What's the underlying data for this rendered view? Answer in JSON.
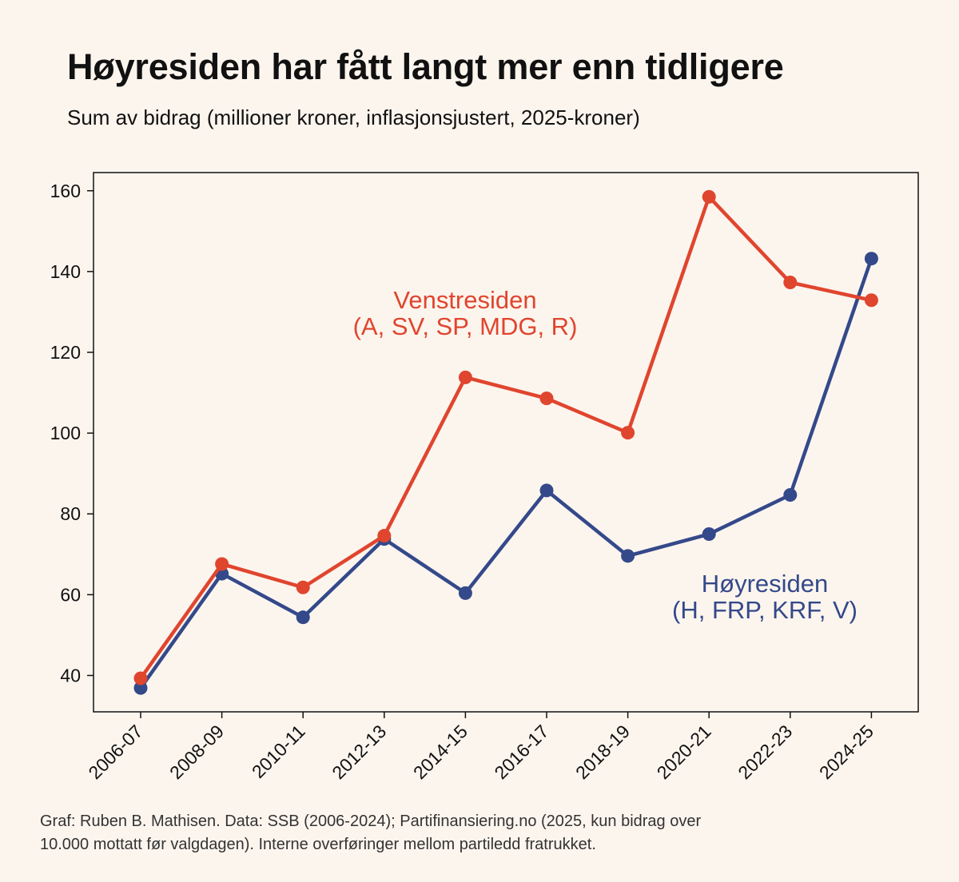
{
  "header": {
    "title": "Høyresiden har fått langt mer enn tidligere",
    "subtitle": "Sum av bidrag (millioner kroner, inflasjonsjustert, 2025-kroner)"
  },
  "footer": {
    "line1": "Graf: Ruben B. Mathisen. Data: SSB (2006-2024); Partifinansiering.no (2025, kun bidrag over",
    "line2": "10.000 mottatt før valgdagen). Interne overføringer mellom partiledd fratrukket."
  },
  "chart_data": {
    "type": "line",
    "title": "Høyresiden har fått langt mer enn tidligere",
    "subtitle": "Sum av bidrag (millioner kroner, inflasjonsjustert, 2025-kroner)",
    "xlabel": "",
    "ylabel": "",
    "categories": [
      "2006-07",
      "2008-09",
      "2010-11",
      "2012-13",
      "2014-15",
      "2016-17",
      "2018-19",
      "2020-21",
      "2022-23",
      "2024-25"
    ],
    "ylim": [
      31,
      164.5
    ],
    "yticks": [
      40,
      60,
      80,
      100,
      120,
      140,
      160
    ],
    "grid": false,
    "legend": "inline labels",
    "series": [
      {
        "key": "hoyre",
        "name_line1": "Høyresiden",
        "name_line2": "(H, FRP, KRF, V)",
        "color": "#34498a",
        "values": [
          36.9,
          65.2,
          54.4,
          73.8,
          60.4,
          85.8,
          69.6,
          75.0,
          84.7,
          143.2
        ]
      },
      {
        "key": "venstre",
        "name_line1": "Venstresiden",
        "name_line2": "(A, SV, SP, MDG, R)",
        "color": "#e0452e",
        "values": [
          39.3,
          67.6,
          61.8,
          74.6,
          113.8,
          108.6,
          100.1,
          158.5,
          137.3,
          132.9
        ]
      }
    ]
  }
}
